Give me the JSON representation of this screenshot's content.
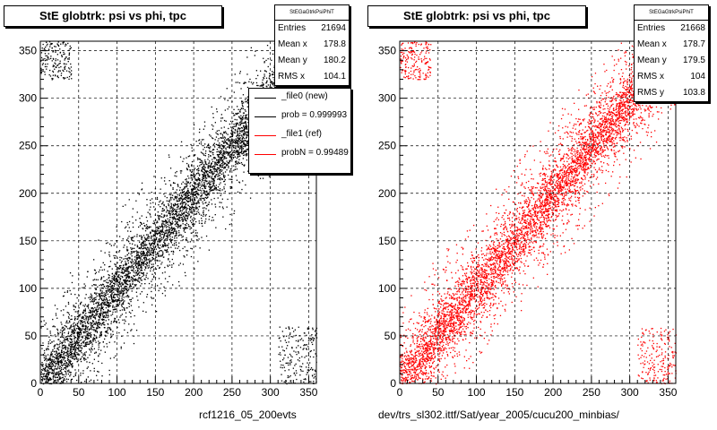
{
  "chart_data": [
    {
      "type": "scatter",
      "title": "StE globtrk: psi vs phi, tpc",
      "xlabel": "",
      "ylabel": "",
      "xlim": [
        0,
        360
      ],
      "ylim": [
        0,
        360
      ],
      "x_ticks": [
        0,
        50,
        100,
        150,
        200,
        250,
        300,
        350
      ],
      "y_ticks": [
        0,
        50,
        100,
        150,
        200,
        250,
        300,
        350
      ],
      "grid": true,
      "marker_color": "#000000",
      "caption": "rcf1216_05_200evts",
      "stats": {
        "name": "StEGaGtrkPsiPhiT",
        "rows": [
          {
            "label": "Entries",
            "value": "21694"
          },
          {
            "label": "Mean x",
            "value": "178.8"
          },
          {
            "label": "Mean y",
            "value": "180.2"
          },
          {
            "label": "RMS x",
            "value": "104.1"
          }
        ]
      },
      "legend": {
        "placement": "top-right",
        "items": [
          {
            "label": "_file0 (new)",
            "color": "#000000"
          },
          {
            "label": "prob = 0.999993",
            "color": "#000000"
          },
          {
            "label": "_file1 (ref)",
            "color": "#ff0000"
          },
          {
            "label": "probN = 0.99489",
            "color": "#ff0000"
          }
        ]
      },
      "density_model": {
        "structure": "diagonal band psi ≈ phi, with sparse clusters near (0,350) and (350,0)",
        "entries_shown": 21694
      }
    },
    {
      "type": "scatter",
      "title": "StE globtrk: psi vs phi, tpc",
      "xlabel": "",
      "ylabel": "",
      "xlim": [
        0,
        360
      ],
      "ylim": [
        0,
        360
      ],
      "x_ticks": [
        0,
        50,
        100,
        150,
        200,
        250,
        300,
        350
      ],
      "y_ticks": [
        0,
        50,
        100,
        150,
        200,
        250,
        300,
        350
      ],
      "grid": true,
      "marker_color": "#ff0000",
      "caption": "dev/trs_sl302.ittf/Sat/year_2005/cucu200_minbias/",
      "stats": {
        "name": "StEGaGtrkPsiPhiT",
        "rows": [
          {
            "label": "Entries",
            "value": "21668"
          },
          {
            "label": "Mean x",
            "value": "178.7"
          },
          {
            "label": "Mean y",
            "value": "179.5"
          },
          {
            "label": "RMS x",
            "value": "104"
          },
          {
            "label": "RMS y",
            "value": "103.8"
          }
        ]
      },
      "density_model": {
        "structure": "diagonal band psi ≈ phi, with sparse clusters near (0,350) and (350,0)",
        "entries_shown": 21668
      }
    }
  ]
}
